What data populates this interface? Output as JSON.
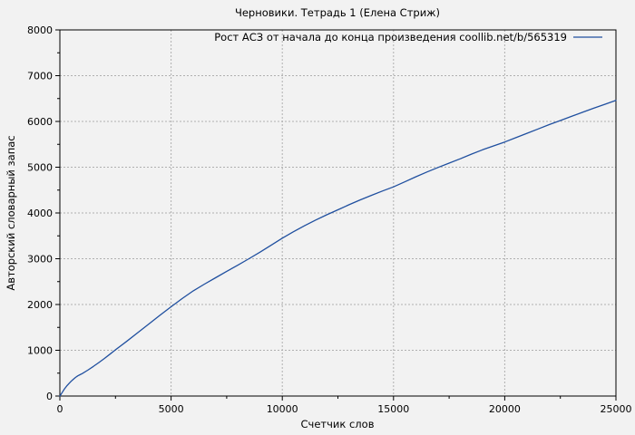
{
  "figure": {
    "background_color": "#f2f2f2",
    "border_color": "#000000",
    "grid_color": "#b0b0b0",
    "text_color": "#000000"
  },
  "chart_data": {
    "type": "line",
    "title": "Черновики. Тетрадь 1 (Елена Стриж)",
    "xlabel": "Счетчик слов",
    "ylabel": "Авторский словарный запас",
    "xlim": [
      0,
      25000
    ],
    "ylim": [
      0,
      8000
    ],
    "x_ticks": [
      0,
      5000,
      10000,
      15000,
      20000,
      25000
    ],
    "y_ticks": [
      0,
      1000,
      2000,
      3000,
      4000,
      5000,
      6000,
      7000,
      8000
    ],
    "x_minor_step": 2500,
    "y_minor_step": 500,
    "grid": "dotted",
    "legend_position": "top-right-inside",
    "series": [
      {
        "name": "Рост АСЗ от начала до конца произведения coollib.net/b/565319",
        "color": "#1f4f9f",
        "points": [
          [
            0,
            0
          ],
          [
            100,
            75
          ],
          [
            200,
            150
          ],
          [
            300,
            215
          ],
          [
            400,
            270
          ],
          [
            500,
            320
          ],
          [
            600,
            365
          ],
          [
            700,
            405
          ],
          [
            800,
            440
          ],
          [
            900,
            465
          ],
          [
            1000,
            490
          ],
          [
            1250,
            565
          ],
          [
            1500,
            645
          ],
          [
            1750,
            730
          ],
          [
            2000,
            820
          ],
          [
            2250,
            915
          ],
          [
            2500,
            1010
          ],
          [
            3000,
            1195
          ],
          [
            3500,
            1385
          ],
          [
            4000,
            1575
          ],
          [
            4500,
            1765
          ],
          [
            5000,
            1950
          ],
          [
            5500,
            2130
          ],
          [
            6000,
            2300
          ],
          [
            6500,
            2445
          ],
          [
            7000,
            2585
          ],
          [
            7500,
            2725
          ],
          [
            8000,
            2860
          ],
          [
            8500,
            3000
          ],
          [
            9000,
            3145
          ],
          [
            9500,
            3295
          ],
          [
            10000,
            3450
          ],
          [
            10500,
            3590
          ],
          [
            11000,
            3720
          ],
          [
            11500,
            3845
          ],
          [
            12000,
            3960
          ],
          [
            12500,
            4070
          ],
          [
            13000,
            4180
          ],
          [
            13500,
            4285
          ],
          [
            14000,
            4385
          ],
          [
            14500,
            4480
          ],
          [
            15000,
            4570
          ],
          [
            15500,
            4680
          ],
          [
            16000,
            4790
          ],
          [
            16500,
            4895
          ],
          [
            17000,
            4995
          ],
          [
            17500,
            5090
          ],
          [
            18000,
            5185
          ],
          [
            18500,
            5285
          ],
          [
            19000,
            5380
          ],
          [
            19500,
            5465
          ],
          [
            20000,
            5550
          ],
          [
            20500,
            5645
          ],
          [
            21000,
            5740
          ],
          [
            21500,
            5835
          ],
          [
            22000,
            5930
          ],
          [
            22500,
            6020
          ],
          [
            23000,
            6110
          ],
          [
            23500,
            6200
          ],
          [
            24000,
            6290
          ],
          [
            24500,
            6375
          ],
          [
            25000,
            6460
          ]
        ]
      }
    ]
  }
}
